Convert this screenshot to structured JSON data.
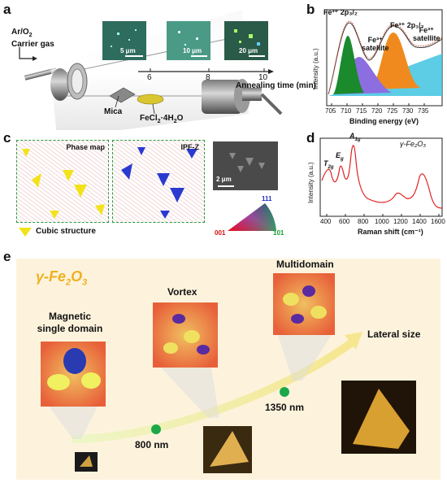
{
  "panel_a": {
    "label": "a",
    "gas_line1": "Ar/O",
    "gas_sub": "2",
    "gas_line2": "Carrier gas",
    "scalebars": [
      "5 μm",
      "10 μm",
      "20 μm"
    ],
    "ticks": [
      "6",
      "8",
      "10"
    ],
    "axis_label": "Annealing time (min)",
    "mica": "Mica",
    "precursor": "FeCl",
    "precursor_sub": "2",
    "precursor_tail": "·4H",
    "precursor_sub2": "2",
    "precursor_end": "O"
  },
  "panel_b": {
    "label": "b",
    "ylabel": "Intensity (a.u.)",
    "xlabel": "Binding energy (eV)",
    "xticks": [
      "705",
      "710",
      "715",
      "720",
      "725",
      "730",
      "735"
    ],
    "ann_2p32": "Fe³⁺ 2p₃/₂",
    "ann_sat1_a": "Fe³⁺",
    "ann_sat1_b": "satellite",
    "ann_2p12": "Fe³⁺ 2p₁/₂",
    "ann_sat2_a": "Fe³⁺",
    "ann_sat2_b": "satellite"
  },
  "panel_c": {
    "label": "c",
    "phase_map": "Phase map",
    "ipf": "IPF-Z",
    "scalebar": "2 μm",
    "legend": "Cubic structure",
    "tri_111": "111",
    "tri_001": "001",
    "tri_101": "101"
  },
  "panel_d": {
    "label": "d",
    "ylabel": "Intensity (a.u.)",
    "xlabel": "Raman shift (cm⁻¹)",
    "xticks": [
      "400",
      "600",
      "800",
      "1000",
      "1200",
      "1400",
      "1600"
    ],
    "peak_t2g": "T",
    "peak_t2g_sub": "2g",
    "peak_eg": "E",
    "peak_eg_sub": "g",
    "peak_a1g": "A",
    "peak_a1g_sub": "1g",
    "phase": "γ-Fe₂O₃"
  },
  "panel_e": {
    "label": "e",
    "material": "γ-Fe",
    "material_sub1": "2",
    "material_mid": "O",
    "material_sub2": "3",
    "single_domain_1": "Magnetic",
    "single_domain_2": "single domain",
    "vortex": "Vortex",
    "multidomain": "Multidomain",
    "lateral": "Lateral size",
    "size1": "800 nm",
    "size2": "1350 nm"
  },
  "colors": {
    "fe_green": "#1a8a2c",
    "fe_purple": "#8c6ee0",
    "fe_orange": "#f08a1e",
    "fe_cyan": "#3fc4e0",
    "raman_red": "#e02020",
    "panel_e_bg": "#fdf3dd",
    "dot_green": "#1aa84a"
  }
}
